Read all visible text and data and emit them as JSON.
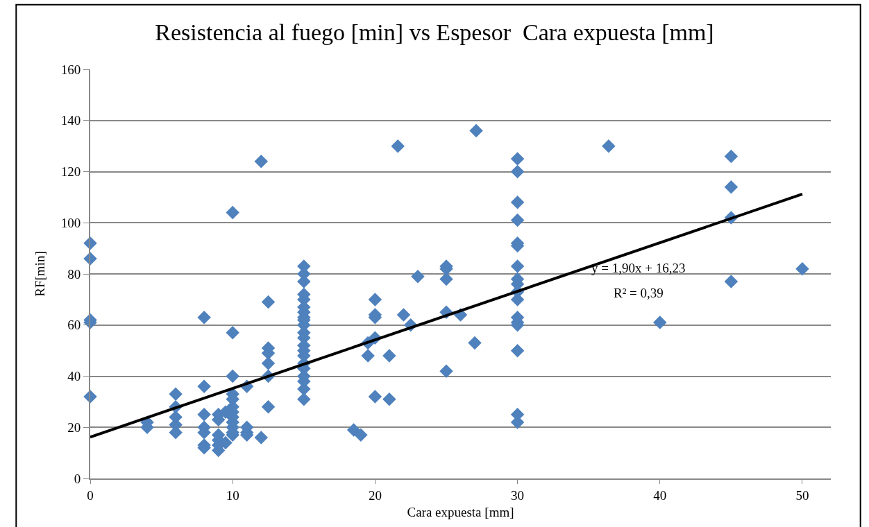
{
  "chart_data": {
    "type": "scatter",
    "title": "Resistencia al fuego [min] vs Espesor  Cara expuesta [mm]",
    "xlabel": "Cara expuesta [mm]",
    "ylabel": "RF[min]",
    "xlim": [
      0,
      52
    ],
    "xticks": [
      0,
      10,
      20,
      30,
      40,
      50
    ],
    "ylim": [
      0,
      160
    ],
    "yticks": [
      0,
      20,
      40,
      60,
      80,
      100,
      120,
      140,
      160
    ],
    "grid": "y",
    "legend": false,
    "marker": "diamond",
    "annotations": [
      "y = 1,90x + 16,23",
      "R² = 0,39"
    ],
    "series": [
      {
        "color": "#4f81bd",
        "x": [
          0,
          0,
          0,
          0,
          0,
          4,
          4,
          6,
          6,
          6,
          6,
          6,
          8,
          8,
          8,
          8,
          8,
          8,
          8,
          9,
          9,
          9,
          9,
          9,
          9,
          9.5,
          9.5,
          10,
          10,
          10,
          10,
          10,
          10,
          10,
          10,
          10,
          10,
          10,
          10,
          11,
          11,
          11,
          11,
          12,
          12,
          12.5,
          12.5,
          12.5,
          12.5,
          12.5,
          12.5,
          15,
          15,
          15,
          15,
          15,
          15,
          15,
          15,
          15,
          15,
          15,
          15,
          15,
          15,
          15,
          15,
          15,
          15,
          15,
          15,
          15,
          18.5,
          19,
          19.5,
          19.5,
          20,
          20,
          20,
          20,
          20,
          21,
          21,
          21.6,
          22,
          22.5,
          23,
          25,
          25,
          25,
          25,
          25,
          26,
          27,
          27.1,
          30,
          30,
          30,
          30,
          30,
          30,
          30,
          30,
          30,
          30,
          30,
          30,
          30,
          30,
          30,
          30,
          30,
          36.4,
          40,
          45,
          45,
          45,
          45,
          50
        ],
        "values": [
          92,
          86,
          62,
          61,
          32,
          22,
          20,
          33,
          28,
          24,
          21,
          18,
          63,
          36,
          25,
          20,
          18,
          13,
          12,
          25,
          23,
          17,
          15,
          13,
          11,
          26,
          14,
          104,
          57,
          40,
          33,
          31,
          28,
          26,
          24,
          22,
          20,
          18,
          17,
          36,
          20,
          18,
          17,
          124,
          16,
          69,
          51,
          49,
          45,
          40,
          28,
          83,
          80,
          77,
          72,
          70,
          67,
          65,
          63,
          62,
          60,
          57,
          55,
          52,
          50,
          48,
          45,
          43,
          40,
          38,
          35,
          31,
          19,
          17,
          48,
          53,
          70,
          64,
          63,
          55,
          32,
          48,
          31,
          130,
          64,
          60,
          79,
          83,
          82,
          78,
          65,
          42,
          64,
          53,
          136,
          125,
          120,
          108,
          101,
          92,
          91,
          83,
          78,
          76,
          73,
          70,
          63,
          61,
          60,
          50,
          25,
          22,
          130,
          61,
          126,
          114,
          102,
          77,
          82
        ]
      },
      {
        "type": "line",
        "color": "#000000",
        "x": [
          0,
          50
        ],
        "values": [
          16.2,
          111.2
        ],
        "marker": "none",
        "line_style": "solid"
      }
    ]
  }
}
